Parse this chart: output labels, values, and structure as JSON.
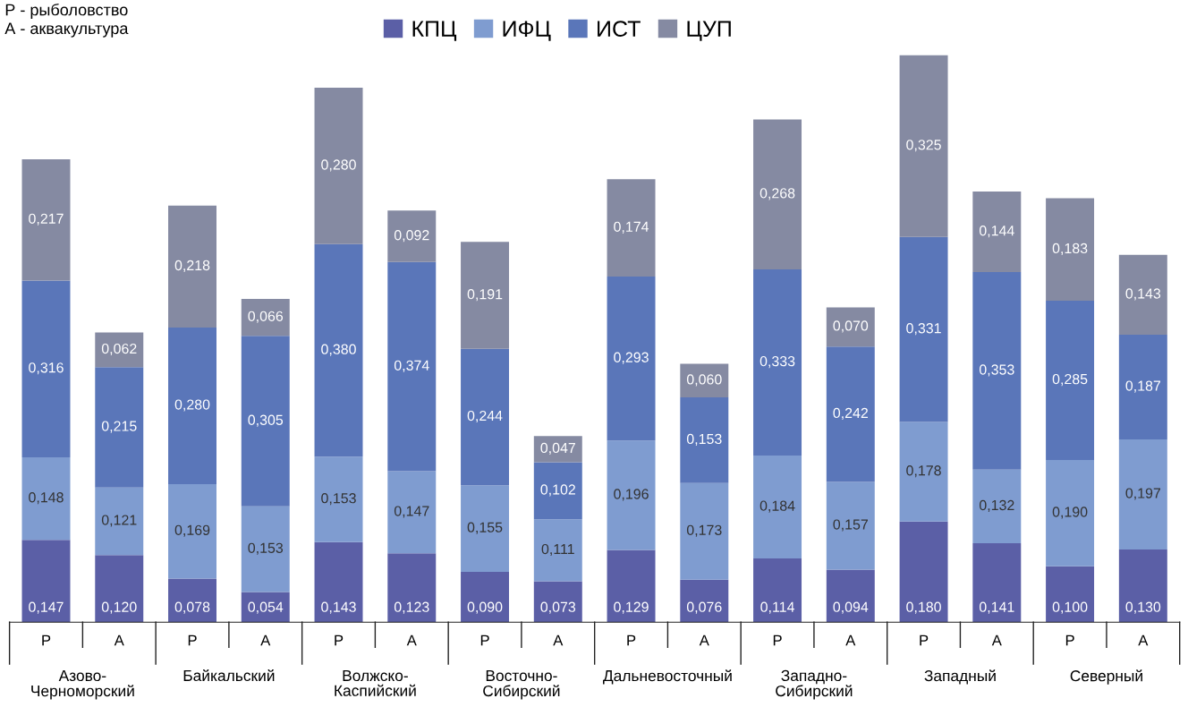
{
  "chart_data": {
    "type": "bar",
    "stacked": true,
    "legend": "top",
    "grid": false,
    "categories": [
      "Р",
      "А",
      "Р",
      "А",
      "Р",
      "А",
      "Р",
      "А",
      "Р",
      "А",
      "Р",
      "А",
      "Р",
      "А",
      "Р",
      "А"
    ],
    "series": [
      {
        "name": "КПЦ",
        "color": "#5b5fa6",
        "values": [
          0.147,
          0.12,
          0.078,
          0.054,
          0.143,
          0.123,
          0.09,
          0.073,
          0.129,
          0.076,
          0.114,
          0.094,
          0.18,
          0.141,
          0.1,
          0.13
        ],
        "value_labels": [
          "0,147",
          "0,120",
          "0,078",
          "0,054",
          "0,143",
          "0,123",
          "0,090",
          "0,073",
          "0,129",
          "0,076",
          "0,114",
          "0,094",
          "0,180",
          "0,141",
          "0,100",
          "0,130"
        ]
      },
      {
        "name": "ИФЦ",
        "color": "#7f9cd0",
        "values": [
          0.148,
          0.121,
          0.169,
          0.153,
          0.153,
          0.147,
          0.155,
          0.111,
          0.196,
          0.173,
          0.184,
          0.157,
          0.178,
          0.132,
          0.19,
          0.197
        ],
        "value_labels": [
          "0,148",
          "0,121",
          "0,169",
          "0,153",
          "0,153",
          "0,147",
          "0,155",
          "0,111",
          "0,196",
          "0,173",
          "0,184",
          "0,157",
          "0,178",
          "0,132",
          "0,190",
          "0,197"
        ]
      },
      {
        "name": "ИСТ",
        "color": "#5a76b9",
        "values": [
          0.316,
          0.215,
          0.28,
          0.305,
          0.38,
          0.374,
          0.244,
          0.102,
          0.293,
          0.153,
          0.333,
          0.242,
          0.331,
          0.353,
          0.285,
          0.187
        ],
        "value_labels": [
          "0,316",
          "0,215",
          "0,280",
          "0,305",
          "0,380",
          "0,374",
          "0,244",
          "0,102",
          "0,293",
          "0,153",
          "0,333",
          "0,242",
          "0,331",
          "0,353",
          "0,285",
          "0,187"
        ]
      },
      {
        "name": "ЦУП",
        "color": "#858aa2",
        "values": [
          0.217,
          0.062,
          0.218,
          0.066,
          0.28,
          0.092,
          0.191,
          0.047,
          0.174,
          0.06,
          0.268,
          0.07,
          0.325,
          0.144,
          0.183,
          0.143
        ],
        "value_labels": [
          "0,217",
          "0,062",
          "0,218",
          "0,066",
          "0,280",
          "0,092",
          "0,191",
          "0,047",
          "0,174",
          "0,060",
          "0,268",
          "0,070",
          "0,325",
          "0,144",
          "0,183",
          "0,143"
        ]
      }
    ],
    "annotations": [
      "Р - рыболовство\nА - аквакультура",
      "Азово-\nЧерноморский",
      "Байкальский",
      "Волжско-\nКаспийский",
      "Восточно-\nСибирский",
      "Дальневосточный",
      "Западно-\nСибирский",
      "Западный",
      "Северный"
    ]
  }
}
